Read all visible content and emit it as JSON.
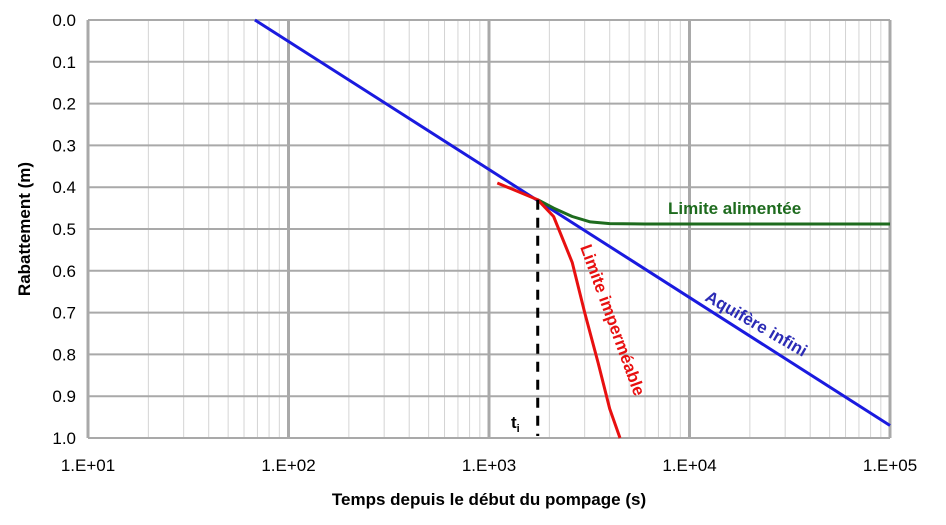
{
  "chart_data": {
    "type": "line",
    "xlabel": "Temps depuis le début du pompage (s)",
    "ylabel": "Rabattement (m)",
    "x_scale": "log",
    "xlim": [
      10,
      100000
    ],
    "ylim": [
      0,
      1.0
    ],
    "y_inverted": true,
    "grid": true,
    "x_tick_labels": [
      "1.E+01",
      "1.E+02",
      "1.E+03",
      "1.E+04",
      "1.E+05"
    ],
    "x_tick_values": [
      10,
      100,
      1000,
      10000,
      100000
    ],
    "y_tick_labels": [
      "0.0",
      "0.1",
      "0.2",
      "0.3",
      "0.4",
      "0.5",
      "0.6",
      "0.7",
      "0.8",
      "0.9",
      "1.0"
    ],
    "y_tick_values": [
      0.0,
      0.1,
      0.2,
      0.3,
      0.4,
      0.5,
      0.6,
      0.7,
      0.8,
      0.9,
      1.0
    ],
    "series": [
      {
        "name": "Aquifère infini",
        "color": "#1a1adf",
        "x": [
          68,
          100000
        ],
        "y": [
          0.0,
          0.97
        ]
      },
      {
        "name": "Limite alimentée",
        "color": "#1e6b1e",
        "x": [
          1750,
          2100,
          2600,
          3200,
          4000,
          6000,
          10000,
          100000
        ],
        "y": [
          0.43,
          0.45,
          0.47,
          0.483,
          0.487,
          0.488,
          0.488,
          0.488
        ]
      },
      {
        "name": "Limite imperméable",
        "color": "#e81010",
        "x": [
          1100,
          1750,
          2100,
          2600,
          3000,
          3500,
          4000,
          4500
        ],
        "y": [
          0.39,
          0.43,
          0.47,
          0.58,
          0.7,
          0.82,
          0.93,
          1.0
        ]
      }
    ],
    "annotations": [
      {
        "text": "t",
        "subscript": "i",
        "x": 1750,
        "marker": "vertical-dashed-line"
      }
    ]
  }
}
